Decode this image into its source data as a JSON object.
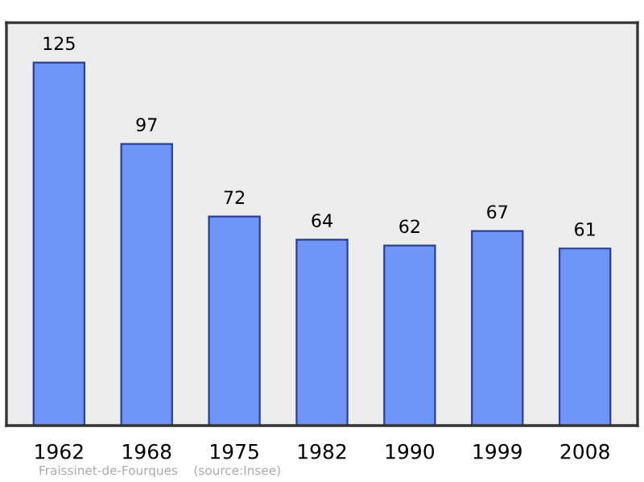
{
  "chart_data": {
    "type": "bar",
    "categories": [
      "1962",
      "1968",
      "1975",
      "1982",
      "1990",
      "1999",
      "2008"
    ],
    "values": [
      125,
      97,
      72,
      64,
      62,
      67,
      61
    ],
    "color": "#6f96f6",
    "data_labels": true,
    "grid": false,
    "legend": false,
    "annotations": [
      "Fraissinet-de-Fourques    (source:Insee)"
    ]
  }
}
